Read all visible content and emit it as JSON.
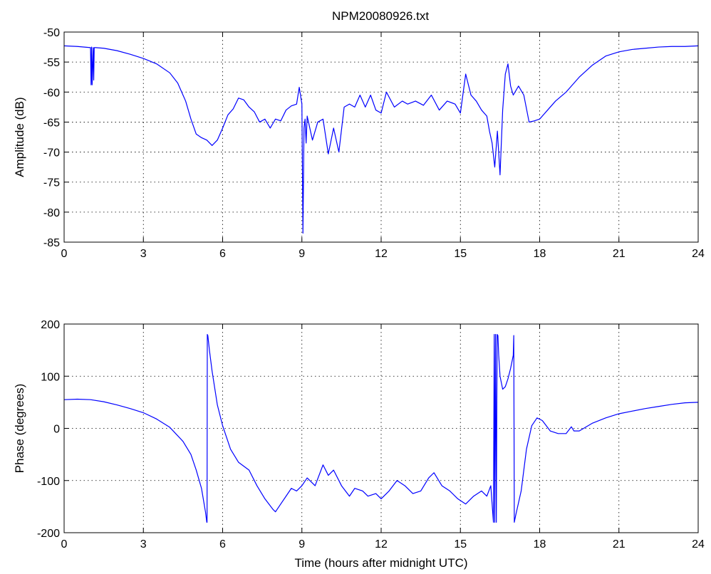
{
  "figure_title": "NPM20080926.txt",
  "chart_data": [
    {
      "type": "line",
      "title": "NPM20080926.txt",
      "xlabel": "",
      "ylabel": "Amplitude (dB)",
      "xlim": [
        0,
        24
      ],
      "ylim": [
        -85,
        -50
      ],
      "xticks": [
        "0",
        "3",
        "6",
        "9",
        "12",
        "15",
        "18",
        "21",
        "24"
      ],
      "yticks": [
        "-85",
        "-80",
        "-75",
        "-70",
        "-65",
        "-60",
        "-55",
        "-50"
      ],
      "grid": true,
      "line_color": "#0000ff",
      "series": [
        {
          "x": [
            0,
            0.5,
            1.0,
            1.02,
            1.04,
            1.06,
            1.1,
            1.12,
            1.14,
            1.2,
            1.5,
            2.0,
            2.5,
            3.0,
            3.5,
            4.0,
            4.3,
            4.6,
            4.8,
            5.0,
            5.2,
            5.4,
            5.6,
            5.8,
            6.0,
            6.2,
            6.4,
            6.6,
            6.8,
            7.0,
            7.2,
            7.4,
            7.6,
            7.8,
            8.0,
            8.2,
            8.4,
            8.6,
            8.8,
            8.9,
            9.0,
            9.04,
            9.08,
            9.12,
            9.16,
            9.2,
            9.4,
            9.6,
            9.8,
            10.0,
            10.2,
            10.4,
            10.6,
            10.8,
            11.0,
            11.2,
            11.4,
            11.6,
            11.8,
            12.0,
            12.2,
            12.5,
            12.8,
            13.0,
            13.3,
            13.6,
            13.9,
            14.2,
            14.5,
            14.8,
            15.0,
            15.2,
            15.4,
            15.6,
            15.8,
            16.0,
            16.1,
            16.2,
            16.3,
            16.4,
            16.5,
            16.6,
            16.7,
            16.8,
            16.9,
            17.0,
            17.2,
            17.4,
            17.6,
            17.8,
            18.0,
            18.3,
            18.6,
            19.0,
            19.2,
            19.5,
            20.0,
            20.5,
            21.0,
            21.5,
            22.0,
            22.5,
            23.0,
            23.5,
            24.0
          ],
          "y": [
            -52.3,
            -52.4,
            -52.6,
            -58.8,
            -52.5,
            -58.8,
            -52.6,
            -58.0,
            -52.6,
            -52.6,
            -52.7,
            -53.1,
            -53.7,
            -54.4,
            -55.3,
            -56.8,
            -58.5,
            -61.5,
            -64.5,
            -67.0,
            -67.6,
            -68.0,
            -68.9,
            -68.0,
            -66.0,
            -63.8,
            -62.8,
            -61.0,
            -61.3,
            -62.5,
            -63.3,
            -65.0,
            -64.5,
            -66.0,
            -64.5,
            -64.8,
            -63.0,
            -62.3,
            -62.0,
            -59.2,
            -62.0,
            -83.5,
            -66.0,
            -64.5,
            -68.5,
            -64.0,
            -68.0,
            -65.0,
            -64.5,
            -70.3,
            -66.0,
            -70.0,
            -62.5,
            -62.0,
            -62.5,
            -60.5,
            -62.5,
            -60.5,
            -63.0,
            -63.5,
            -60.0,
            -62.5,
            -61.5,
            -62.0,
            -61.5,
            -62.2,
            -60.5,
            -63.0,
            -61.5,
            -62.0,
            -63.5,
            -57.0,
            -60.5,
            -61.5,
            -63.0,
            -64.0,
            -66.5,
            -68.5,
            -72.5,
            -66.5,
            -73.8,
            -63.0,
            -57.0,
            -55.3,
            -59.0,
            -60.5,
            -59.0,
            -60.5,
            -65.0,
            -64.8,
            -64.5,
            -63.0,
            -61.5,
            -60.0,
            -59.0,
            -57.5,
            -55.5,
            -54.0,
            -53.3,
            -52.9,
            -52.7,
            -52.5,
            -52.4,
            -52.4,
            -52.3
          ]
        }
      ]
    },
    {
      "type": "line",
      "title": "",
      "xlabel": "Time (hours after midnight UTC)",
      "ylabel": "Phase (degrees)",
      "xlim": [
        0,
        24
      ],
      "ylim": [
        -200,
        200
      ],
      "xticks": [
        "0",
        "3",
        "6",
        "9",
        "12",
        "15",
        "18",
        "21",
        "24"
      ],
      "yticks": [
        "-200",
        "-100",
        "0",
        "100",
        "200"
      ],
      "grid": true,
      "line_color": "#0000ff",
      "series": [
        {
          "x": [
            0,
            0.5,
            1.0,
            1.5,
            2.0,
            2.5,
            3.0,
            3.5,
            4.0,
            4.5,
            4.8,
            5.0,
            5.2,
            5.35,
            5.4,
            5.41,
            5.42,
            5.44,
            5.5,
            5.6,
            5.8,
            6.0,
            6.3,
            6.6,
            7.0,
            7.3,
            7.6,
            7.9,
            8.0,
            8.2,
            8.4,
            8.6,
            8.8,
            9.0,
            9.2,
            9.5,
            9.8,
            10.0,
            10.2,
            10.5,
            10.8,
            11.0,
            11.3,
            11.5,
            11.8,
            12.0,
            12.3,
            12.6,
            12.9,
            13.2,
            13.5,
            13.8,
            14.0,
            14.3,
            14.6,
            14.9,
            15.2,
            15.5,
            15.8,
            16.0,
            16.15,
            16.25,
            16.28,
            16.3,
            16.33,
            16.36,
            16.39,
            16.42,
            16.45,
            16.5,
            16.6,
            16.7,
            16.8,
            16.9,
            17.0,
            17.02,
            17.04,
            17.06,
            17.1,
            17.3,
            17.5,
            17.7,
            17.9,
            18.1,
            18.4,
            18.7,
            19.0,
            19.2,
            19.3,
            19.5,
            20.0,
            20.5,
            21.0,
            21.5,
            22.0,
            22.5,
            23.0,
            23.5,
            24.0
          ],
          "y": [
            55,
            56,
            55,
            51,
            45,
            38,
            30,
            18,
            2,
            -25,
            -50,
            -80,
            -115,
            -160,
            -180,
            -180,
            180,
            178,
            150,
            110,
            45,
            5,
            -40,
            -65,
            -80,
            -110,
            -135,
            -155,
            -160,
            -145,
            -130,
            -115,
            -120,
            -110,
            -95,
            -110,
            -70,
            -90,
            -80,
            -110,
            -130,
            -115,
            -120,
            -130,
            -125,
            -135,
            -120,
            -100,
            -110,
            -125,
            -120,
            -95,
            -85,
            -110,
            -120,
            -135,
            -145,
            -130,
            -120,
            -130,
            -110,
            -180,
            180,
            -180,
            180,
            -180,
            180,
            178,
            140,
            100,
            75,
            80,
            95,
            115,
            140,
            178,
            -180,
            -175,
            -165,
            -120,
            -40,
            5,
            20,
            15,
            -5,
            -10,
            -10,
            3,
            -5,
            -5,
            10,
            20,
            28,
            33,
            38,
            42,
            46,
            49,
            50
          ]
        }
      ]
    }
  ]
}
